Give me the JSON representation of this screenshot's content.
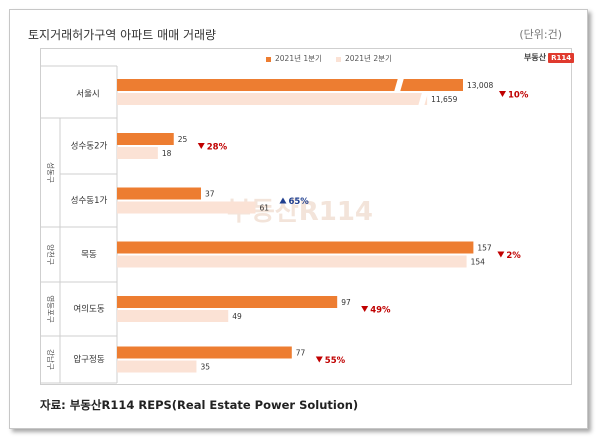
{
  "header": {
    "title": "토지거래허가구역 아파트 매매 거래량",
    "unit": "(단위:건)"
  },
  "logo": {
    "text": "부동산",
    "badge": "R114"
  },
  "watermark": "부동산R114",
  "source": "자료: 부동산R114 REPS(Real Estate Power Solution)",
  "colors": {
    "series1": "#ed7d31",
    "series2": "#fbe2d5",
    "down": "#c00000",
    "up": "#1f3f8f"
  },
  "chart_data": {
    "type": "bar",
    "orientation": "horizontal",
    "title": "토지거래허가구역 아파트 매매 거래량",
    "unit": "(단위:건)",
    "legend": [
      "2021년 1분기",
      "2021년 2분기"
    ],
    "legend_position": "top",
    "axis_break": true,
    "categories": [
      "서울시",
      "성수동2가",
      "성수동1가",
      "목동",
      "여의도동",
      "압구정동"
    ],
    "groups": [
      {
        "name": "",
        "members": [
          "서울시"
        ]
      },
      {
        "name": "성동구",
        "members": [
          "성수동2가",
          "성수동1가"
        ]
      },
      {
        "name": "양천구",
        "members": [
          "목동"
        ]
      },
      {
        "name": "영등포구",
        "members": [
          "여의도동"
        ]
      },
      {
        "name": "강남구",
        "members": [
          "압구정동"
        ]
      }
    ],
    "series": [
      {
        "name": "2021년 1분기",
        "values": [
          13008,
          25,
          37,
          157,
          97,
          77
        ],
        "labels": [
          "13,008",
          "25",
          "37",
          "157",
          "97",
          "77"
        ]
      },
      {
        "name": "2021년 2분기",
        "values": [
          11659,
          18,
          61,
          154,
          49,
          35
        ],
        "labels": [
          "11,659",
          "18",
          "61",
          "154",
          "49",
          "35"
        ]
      }
    ],
    "change": [
      {
        "direction": "down",
        "label": "10%"
      },
      {
        "direction": "down",
        "label": "28%"
      },
      {
        "direction": "up",
        "label": "65%"
      },
      {
        "direction": "down",
        "label": "2%"
      },
      {
        "direction": "down",
        "label": "49%"
      },
      {
        "direction": "down",
        "label": "55%"
      }
    ]
  }
}
